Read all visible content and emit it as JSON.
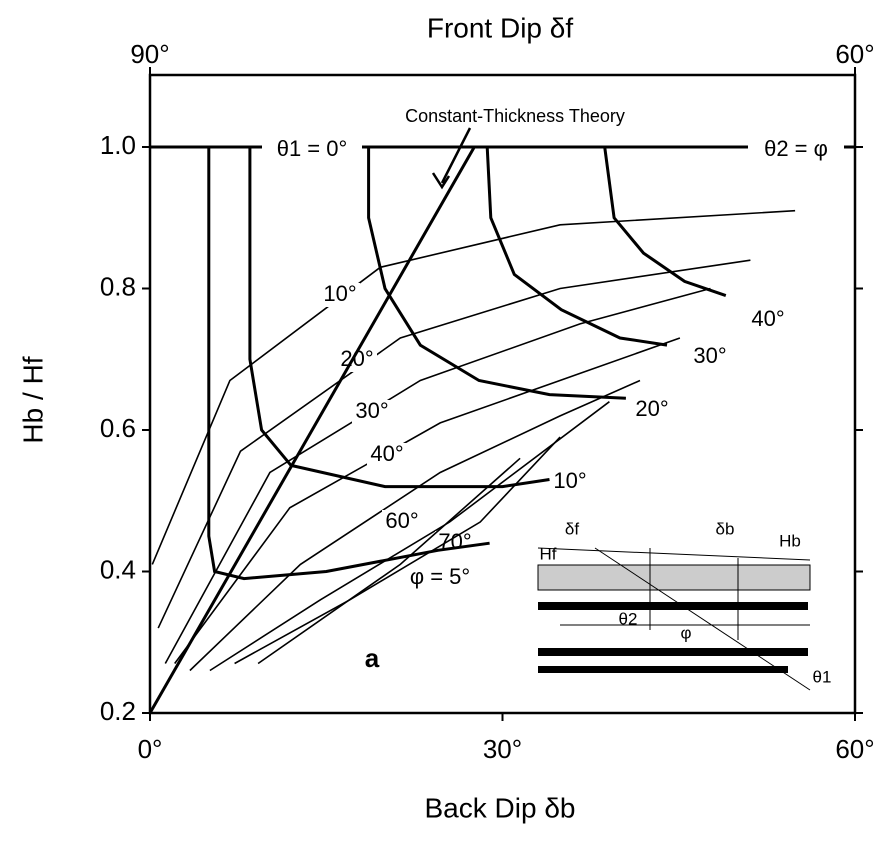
{
  "chart_data": {
    "type": "line",
    "title": "Front Dip δf",
    "x_label": "Back Dip δb",
    "y_label": "Hb / Hf",
    "color": "#000000",
    "xlim": [
      0,
      60
    ],
    "xticks": [
      {
        "value": 0,
        "label": "0°"
      },
      {
        "value": 30,
        "label": "30°"
      },
      {
        "value": 60,
        "label": "60°"
      }
    ],
    "x2lim": [
      90,
      60
    ],
    "x2ticks": [
      {
        "value": 90,
        "label": "90°"
      },
      {
        "value": 60,
        "label": "60°"
      }
    ],
    "ylim": [
      0.2,
      1.0
    ],
    "yticks": [
      0.2,
      0.4,
      0.6,
      0.8,
      {
        "value": 1.0,
        "label": "1.0"
      }
    ],
    "series": [
      {
        "style": "thin",
        "name": "10°",
        "x": [
          0.2,
          6.8,
          19.6,
          34.9,
          54.9
        ],
        "values": [
          0.41,
          0.67,
          0.83,
          0.89,
          0.91
        ]
      },
      {
        "style": "thin",
        "name": "20°",
        "x": [
          0.7,
          7.7,
          21.3,
          34.9,
          51.1
        ],
        "values": [
          0.32,
          0.57,
          0.73,
          0.8,
          0.84
        ]
      },
      {
        "style": "thin",
        "name": "30°",
        "x": [
          1.3,
          10.2,
          23.0,
          36.6,
          47.7
        ],
        "values": [
          0.27,
          0.54,
          0.67,
          0.75,
          0.8
        ]
      },
      {
        "style": "thin",
        "name": "40°",
        "x": [
          2.1,
          11.9,
          24.7,
          36.6,
          45.1
        ],
        "values": [
          0.27,
          0.49,
          0.61,
          0.68,
          0.73
        ]
      },
      {
        "style": "thin",
        "name": "60°",
        "x": [
          3.4,
          12.8,
          24.7,
          34.9,
          41.7
        ],
        "values": [
          0.26,
          0.41,
          0.54,
          0.62,
          0.67
        ]
      },
      {
        "style": "thin",
        "name": "70°",
        "x": [
          5.1,
          14.5,
          25.5,
          39.1
        ],
        "values": [
          0.26,
          0.36,
          0.47,
          0.64
        ]
      },
      {
        "style": "thin",
        "x": [
          7.2,
          17.0,
          28.1,
          34.9
        ],
        "values": [
          0.27,
          0.36,
          0.47,
          0.59
        ]
      },
      {
        "style": "thin",
        "x": [
          9.2,
          21.3,
          31.5
        ],
        "values": [
          0.27,
          0.41,
          0.56
        ]
      },
      {
        "style": "thick",
        "name": "φ = 5°",
        "x": [
          5,
          5,
          5.5,
          8,
          15,
          24.5,
          28.9
        ],
        "values": [
          1.0,
          0.45,
          0.4,
          0.39,
          0.4,
          0.43,
          0.44
        ]
      },
      {
        "style": "thick",
        "name": "10°",
        "x": [
          8.5,
          8.5,
          9.5,
          12,
          20,
          30,
          34
        ],
        "values": [
          1.0,
          0.7,
          0.6,
          0.55,
          0.52,
          0.52,
          0.53
        ]
      },
      {
        "style": "thick",
        "name": "20°",
        "x": [
          18.6,
          18.6,
          20,
          23,
          28,
          34,
          40.5
        ],
        "values": [
          1.0,
          0.9,
          0.8,
          0.72,
          0.67,
          0.65,
          0.645
        ]
      },
      {
        "style": "thick",
        "name": "30°",
        "x": [
          28.7,
          29,
          31,
          35,
          40,
          44
        ],
        "values": [
          1.0,
          0.9,
          0.82,
          0.77,
          0.73,
          0.72
        ]
      },
      {
        "style": "thick",
        "name": "40°",
        "x": [
          38.7,
          39.5,
          42,
          45.5,
          49
        ],
        "values": [
          1.0,
          0.9,
          0.85,
          0.81,
          0.79
        ]
      },
      {
        "style": "thick",
        "x": [
          0,
          60
        ],
        "values": [
          1.0,
          1.0
        ]
      },
      {
        "style": "thick",
        "name": "Constant-Thickness Theory",
        "x": [
          0,
          27.6
        ],
        "values": [
          0.2,
          1.0
        ]
      }
    ],
    "annotations": [
      "θ1 = 0°",
      "θ2 = φ",
      "a"
    ],
    "inset_labels": [
      "δf",
      "δb",
      "Hf",
      "Hb",
      "θ2",
      "φ",
      "θ1"
    ]
  }
}
